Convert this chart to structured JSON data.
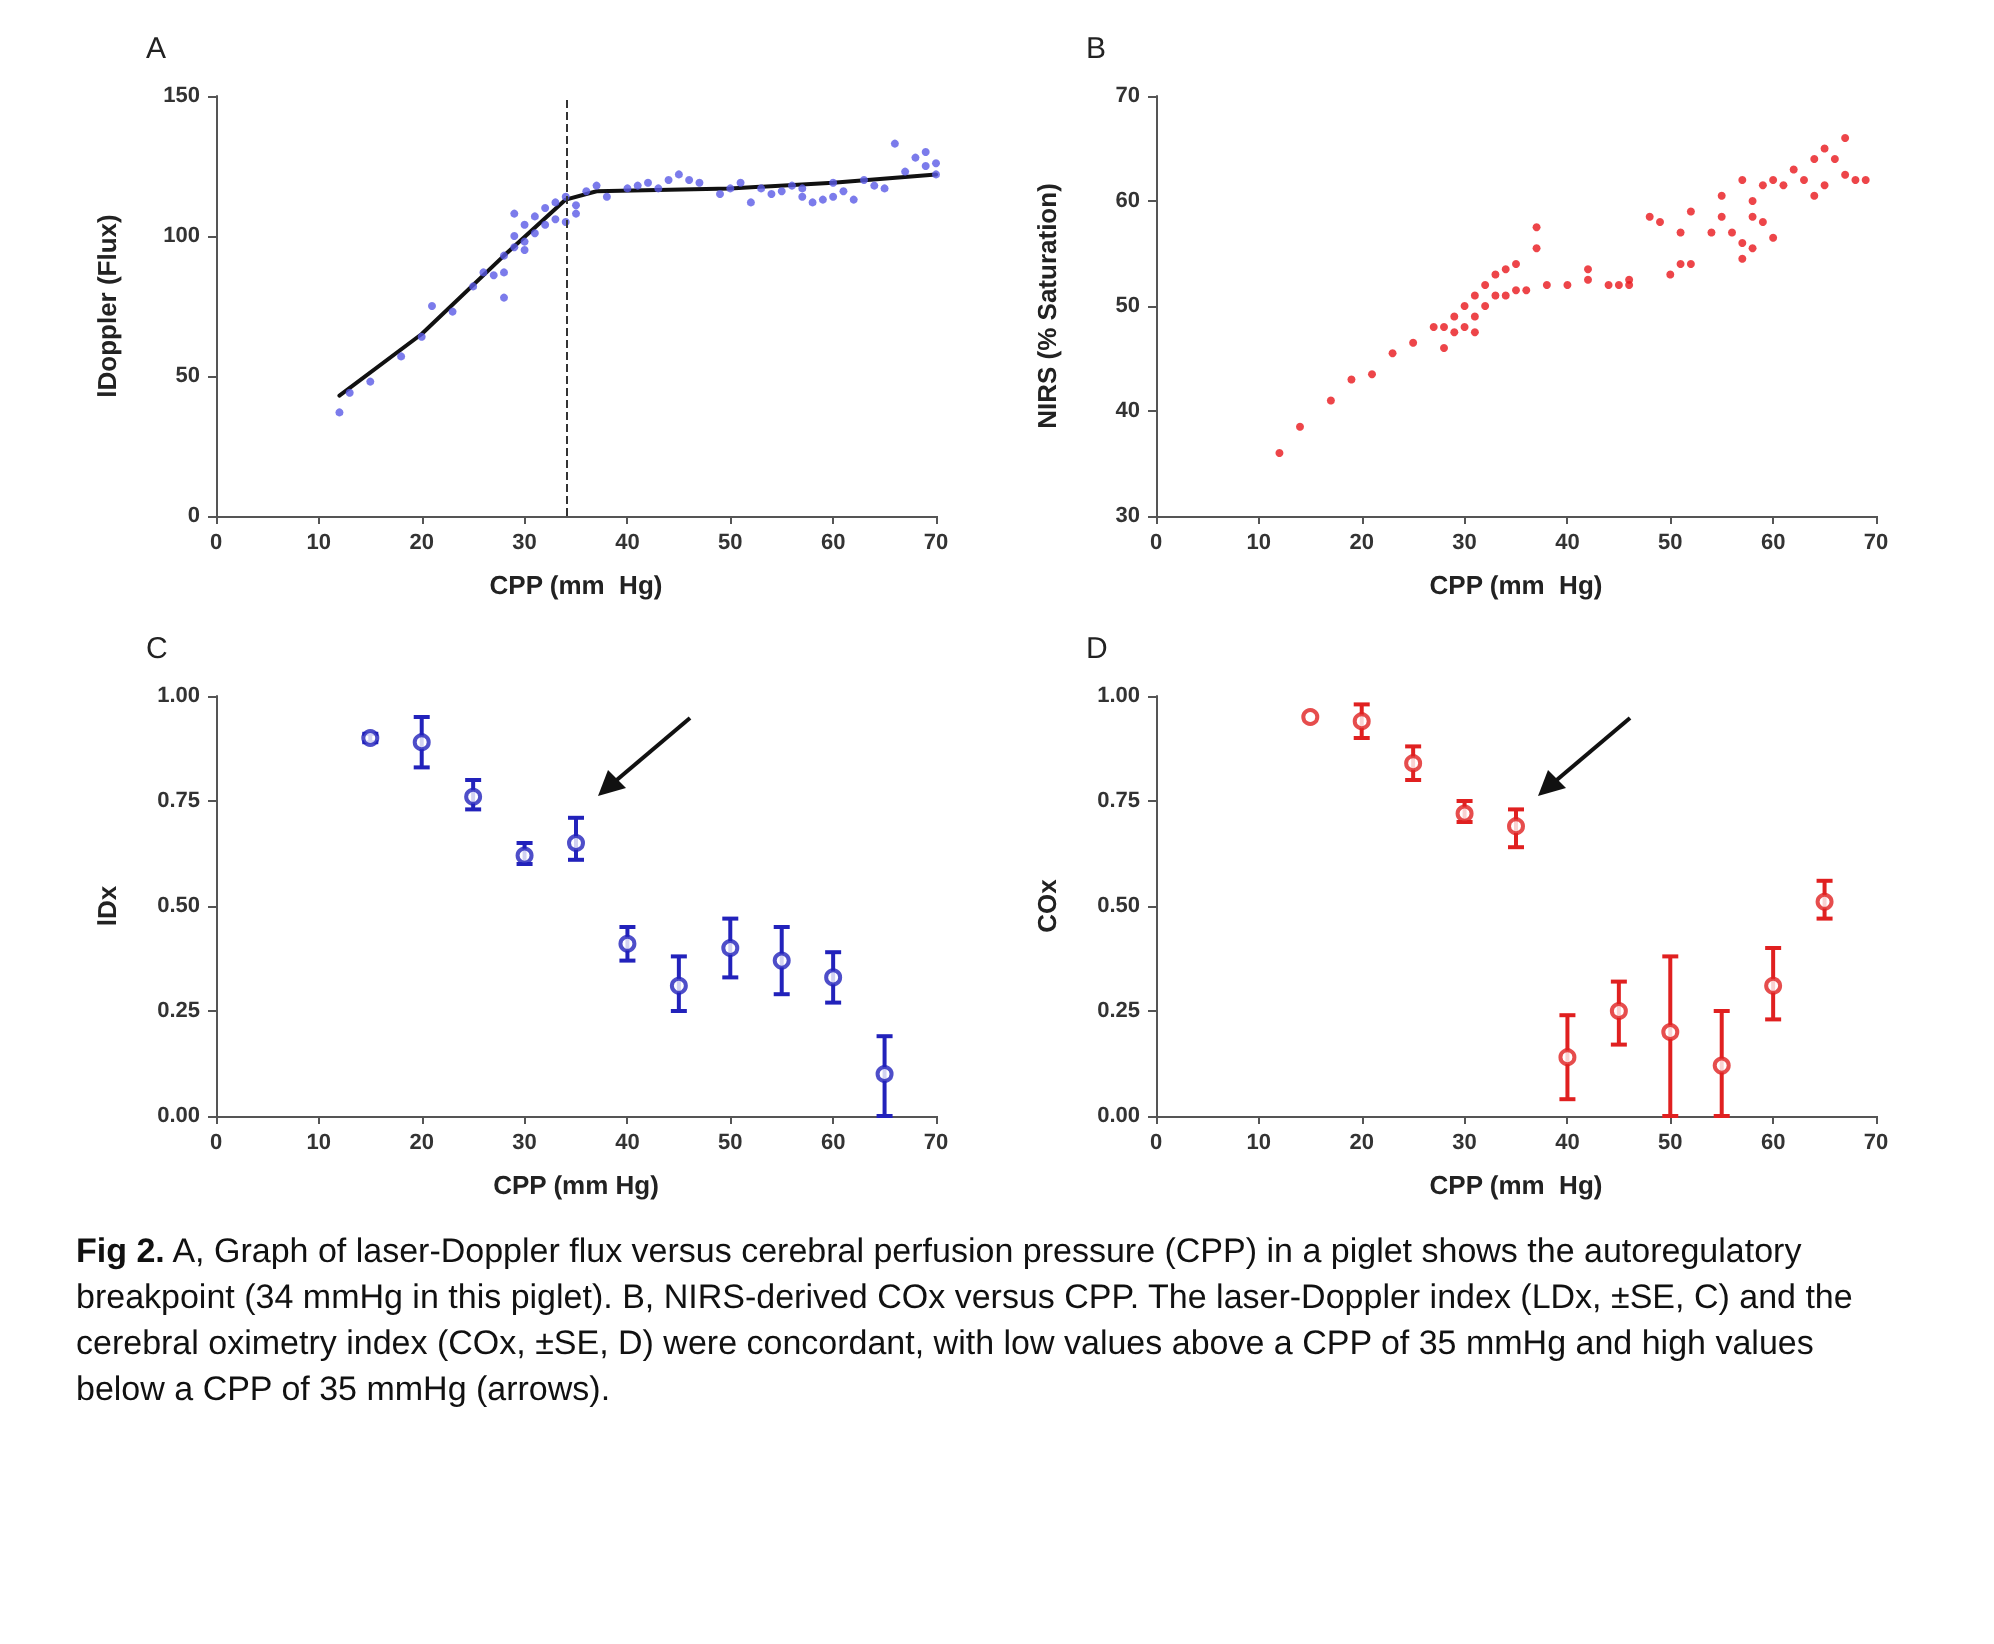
{
  "chart_data": [
    {
      "type": "scatter",
      "title": "A",
      "xlabel": "CPP (mm  Hg)",
      "ylabel": "lDoppler (Flux)",
      "xlim": [
        0,
        70
      ],
      "xticks": [
        0,
        10,
        20,
        30,
        40,
        50,
        60,
        70
      ],
      "ylim": [
        0,
        150
      ],
      "yticks": [
        0,
        50,
        100,
        150
      ],
      "marker": "circle",
      "ref_lines": [
        {
          "axis": "x",
          "value": 34,
          "color": "#333333",
          "line_style": "dashed"
        }
      ],
      "series": [
        {
          "color": "#5a5ae6",
          "x": [
            12,
            13,
            15,
            18,
            20,
            21,
            23,
            25,
            26,
            27,
            28,
            28,
            28,
            29,
            29,
            29,
            30,
            30,
            30,
            31,
            31,
            32,
            32,
            33,
            33,
            34,
            34,
            35,
            35,
            36,
            37,
            38,
            40,
            41,
            42,
            43,
            44,
            45,
            46,
            47,
            49,
            50,
            51,
            52,
            53,
            54,
            55,
            56,
            57,
            57,
            58,
            59,
            60,
            60,
            61,
            62,
            63,
            64,
            65,
            66,
            67,
            68,
            69,
            69,
            70,
            70
          ],
          "values": [
            37,
            44,
            48,
            57,
            64,
            75,
            73,
            82,
            87,
            86,
            87,
            78,
            93,
            108,
            96,
            100,
            104,
            98,
            95,
            101,
            107,
            104,
            110,
            106,
            112,
            105,
            114,
            111,
            108,
            116,
            118,
            114,
            117,
            118,
            119,
            117,
            120,
            122,
            120,
            119,
            115,
            117,
            119,
            112,
            117,
            115,
            116,
            118,
            114,
            117,
            112,
            113,
            119,
            114,
            116,
            113,
            120,
            118,
            117,
            133,
            123,
            128,
            130,
            125,
            126,
            122
          ]
        },
        {
          "type": "line",
          "color": "#111111",
          "marker": "none",
          "x": [
            12,
            20,
            28,
            34,
            37,
            50,
            60,
            70
          ],
          "values": [
            43,
            65,
            93,
            113,
            116,
            117,
            119,
            122
          ]
        }
      ]
    },
    {
      "type": "scatter",
      "title": "B",
      "xlabel": "CPP (mm  Hg)",
      "ylabel": "NIRS (% Saturation)",
      "xlim": [
        0,
        70
      ],
      "xticks": [
        0,
        10,
        20,
        30,
        40,
        50,
        60,
        70
      ],
      "ylim": [
        30,
        70
      ],
      "yticks": [
        30,
        40,
        50,
        60,
        70
      ],
      "marker": "circle",
      "series": [
        {
          "color": "#e8161b",
          "x": [
            12,
            14,
            17,
            19,
            21,
            23,
            25,
            27,
            28,
            28,
            29,
            29,
            30,
            30,
            31,
            31,
            31,
            32,
            32,
            33,
            33,
            34,
            34,
            35,
            35,
            36,
            37,
            37,
            38,
            40,
            42,
            42,
            44,
            45,
            46,
            46,
            48,
            49,
            50,
            51,
            51,
            52,
            52,
            54,
            55,
            55,
            56,
            57,
            57,
            57,
            58,
            58,
            58,
            59,
            59,
            60,
            60,
            61,
            62,
            63,
            64,
            64,
            65,
            65,
            66,
            67,
            67,
            68,
            69
          ],
          "values": [
            36,
            38.5,
            41,
            43,
            43.5,
            45.5,
            46.5,
            48,
            46,
            48,
            49,
            47.5,
            50,
            48,
            51,
            49,
            47.5,
            52,
            50,
            51,
            53,
            53.5,
            51,
            54,
            51.5,
            51.5,
            57.5,
            55.5,
            52,
            52,
            52.5,
            53.5,
            52,
            52,
            52.5,
            52,
            58.5,
            58,
            53,
            57,
            54,
            59,
            54,
            57,
            60.5,
            58.5,
            57,
            62,
            56,
            54.5,
            60,
            58.5,
            55.5,
            58,
            61.5,
            62,
            56.5,
            61.5,
            63,
            62,
            64,
            60.5,
            65,
            61.5,
            64,
            66,
            62.5,
            62,
            62
          ]
        }
      ]
    },
    {
      "type": "scatter",
      "title": "C",
      "xlabel": "CPP (mm Hg)",
      "ylabel": "lDx",
      "xlim": [
        0,
        70
      ],
      "xticks": [
        0,
        10,
        20,
        30,
        40,
        50,
        60,
        70
      ],
      "ylim": [
        0,
        1
      ],
      "yticks": [
        {
          "value": 0,
          "label": "0.00"
        },
        {
          "value": 0.25,
          "label": "0.25"
        },
        {
          "value": 0.5,
          "label": "0.50"
        },
        {
          "value": 0.75,
          "label": "0.75"
        },
        {
          "value": 1,
          "label": "1.00"
        }
      ],
      "marker": "circle",
      "series": [
        {
          "color": "#2222bb",
          "x": [
            15,
            20,
            25,
            30,
            35,
            40,
            45,
            50,
            55,
            60,
            65
          ],
          "values": [
            0.9,
            0.89,
            0.76,
            0.62,
            0.65,
            0.41,
            0.31,
            0.4,
            0.37,
            0.33,
            0.1
          ],
          "errors": [
            0.01,
            [
              0.83,
              0.95
            ],
            [
              0.73,
              0.8
            ],
            [
              0.6,
              0.65
            ],
            [
              0.61,
              0.71
            ],
            [
              0.37,
              0.45
            ],
            [
              0.25,
              0.38
            ],
            [
              0.33,
              0.47
            ],
            [
              0.29,
              0.45
            ],
            [
              0.27,
              0.39
            ],
            [
              0.0,
              0.19
            ]
          ]
        }
      ]
    },
    {
      "type": "scatter",
      "title": "D",
      "xlabel": "CPP (mm  Hg)",
      "ylabel": "COx",
      "xlim": [
        0,
        70
      ],
      "xticks": [
        0,
        10,
        20,
        30,
        40,
        50,
        60,
        70
      ],
      "ylim": [
        0,
        1
      ],
      "yticks": [
        {
          "value": 0,
          "label": "0.00"
        },
        {
          "value": 0.25,
          "label": "0.25"
        },
        {
          "value": 0.5,
          "label": "0.50"
        },
        {
          "value": 0.75,
          "label": "0.75"
        },
        {
          "value": 1,
          "label": "1.00"
        }
      ],
      "marker": "circle",
      "annotations": [
        "Fig 2. A, Graph of laser-Doppler flux versus cerebral perfusion pressure (CPP) in a piglet shows the autoregulatory breakpoint (34 mmHg in this piglet). B, NIRS-derived COx versus CPP. The laser-Doppler index (LDx, ±SE, C) and the cerebral oximetry index (COx, ±SE, D) were concordant, with low values above a CPP of 35 mmHg and high values below a CPP of 35 mmHg (arrows)."
      ],
      "series": [
        {
          "color": "#e02020",
          "x": [
            15,
            20,
            25,
            30,
            35,
            40,
            45,
            50,
            55,
            60,
            65
          ],
          "values": [
            0.95,
            0.94,
            0.84,
            0.72,
            0.69,
            0.14,
            0.25,
            0.2,
            0.12,
            0.31,
            0.51
          ],
          "errors": [
            null,
            [
              0.9,
              0.98
            ],
            [
              0.8,
              0.88
            ],
            [
              0.7,
              0.75
            ],
            [
              0.64,
              0.73
            ],
            [
              0.04,
              0.24
            ],
            [
              0.17,
              0.32
            ],
            [
              0.0,
              0.38
            ],
            [
              0.0,
              0.25
            ],
            [
              0.23,
              0.4
            ],
            [
              0.47,
              0.56
            ]
          ]
        }
      ]
    }
  ]
}
